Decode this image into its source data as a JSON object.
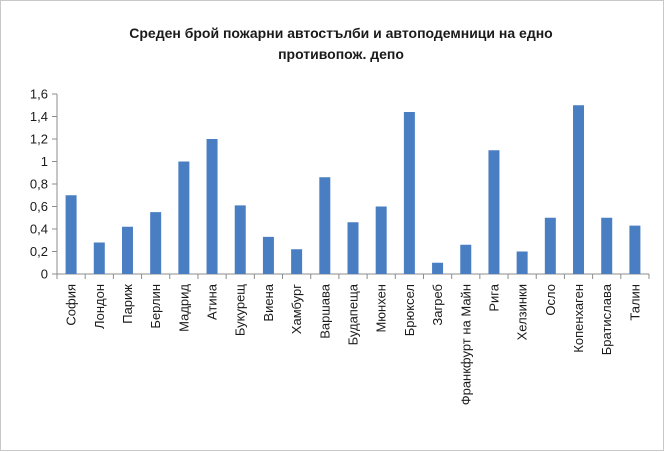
{
  "chart_data": {
    "type": "bar",
    "title_lines": [
      "Среден брой пожарни автостълби и автоподемници на едно",
      "противопож. депо"
    ],
    "categories": [
      "София",
      "Лондон",
      "Париж",
      "Берлин",
      "Мадрид",
      "Атина",
      "Букурещ",
      "Виена",
      "Хамбург",
      "Варшава",
      "Будапеща",
      "Мюнхен",
      "Брюксел",
      "Загреб",
      "Франкфурт на Майн",
      "Рига",
      "Хелзинки",
      "Осло",
      "Копенхаген",
      "Братислава",
      "Талин"
    ],
    "values": [
      0.7,
      0.28,
      0.42,
      0.55,
      1.0,
      1.2,
      0.61,
      0.33,
      0.22,
      0.86,
      0.46,
      0.6,
      1.44,
      0.1,
      0.26,
      1.1,
      0.2,
      0.5,
      1.5,
      0.5,
      0.43
    ],
    "yticks": [
      "0",
      "0,2",
      "0,4",
      "0,6",
      "0,8",
      "1",
      "1,2",
      "1,4",
      "1,6"
    ],
    "ylim": [
      0,
      1.6
    ],
    "bar_color": "#4a7ec2",
    "xlabel": "",
    "ylabel": "",
    "grid": false,
    "legend": "none"
  }
}
